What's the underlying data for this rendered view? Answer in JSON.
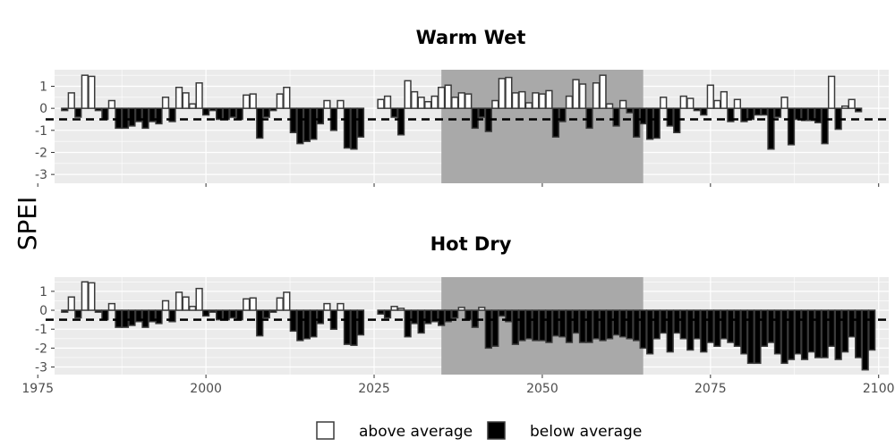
{
  "chart_data": {
    "type": "bar",
    "ylabel": "SPEI",
    "xlim": [
      1977.5,
      2101.5
    ],
    "ylim": [
      -3.4,
      1.75
    ],
    "x_ticks": [
      1975,
      2000,
      2025,
      2050,
      2075,
      2100
    ],
    "y_ticks": [
      1,
      0,
      -1,
      -2,
      -3
    ],
    "threshold": -0.5,
    "highlight_period": [
      2035,
      2065
    ],
    "colors": {
      "panel_bg": "#ebebeb",
      "grid": "#ffffff",
      "highlight": "#a9a9a9",
      "positive_fill": "#ffffff",
      "negative_fill": "#000000",
      "bar_outline": "#3a3a3a"
    },
    "legend": {
      "position": "bottom",
      "items": [
        {
          "label": "above average",
          "fill": "#ffffff"
        },
        {
          "label": "below average",
          "fill": "#000000"
        }
      ]
    },
    "panels": [
      {
        "title": "Warm Wet",
        "segments": [
          {
            "start": 1979,
            "values": [
              -0.1,
              0.7,
              -0.4,
              1.5,
              1.45,
              -0.1,
              -0.5,
              0.35,
              -0.9,
              -0.9,
              -0.8,
              -0.6,
              -0.9,
              -0.6,
              -0.7,
              0.5,
              -0.6,
              0.95,
              0.7,
              0.2,
              1.15,
              -0.3,
              -0.1,
              -0.5,
              -0.5,
              -0.4,
              -0.5,
              0.6,
              0.65,
              -1.35,
              -0.4,
              -0.1,
              0.65,
              0.95,
              -1.1,
              -1.6,
              -1.5,
              -1.4,
              -0.7,
              0.35,
              -1.0,
              0.35,
              -1.8,
              -1.85,
              -1.3
            ]
          },
          {
            "start": 2026,
            "values": [
              0.4,
              0.55,
              -0.4,
              -1.2,
              1.25,
              0.75,
              0.5,
              0.3,
              0.55,
              0.95,
              1.05,
              0.5,
              0.7,
              0.65,
              -0.9,
              -0.4,
              -1.05,
              0.35,
              1.35,
              1.4,
              0.7,
              0.75,
              0.25,
              0.7,
              0.65,
              0.8,
              -1.3,
              -0.6,
              0.55,
              1.3,
              1.1,
              -0.9,
              1.15,
              1.5,
              0.2,
              -0.8,
              0.35,
              -0.2,
              -1.3,
              -0.7,
              -1.4,
              -1.35,
              0.5,
              -0.8,
              -1.1,
              0.55,
              0.45,
              -0.1,
              -0.3,
              1.05,
              0.35,
              0.75,
              -0.6,
              0.4,
              -0.6,
              -0.5,
              -0.3,
              -0.3,
              -1.85,
              -0.4,
              0.5,
              -1.65,
              -0.5,
              -0.55,
              -0.55,
              -0.65,
              -1.6,
              1.45,
              -0.95,
              0.1,
              0.4,
              -0.15
            ]
          }
        ]
      },
      {
        "title": "Hot Dry",
        "segments": [
          {
            "start": 1979,
            "values": [
              -0.1,
              0.7,
              -0.4,
              1.5,
              1.45,
              -0.1,
              -0.5,
              0.35,
              -0.9,
              -0.9,
              -0.8,
              -0.6,
              -0.9,
              -0.6,
              -0.7,
              0.5,
              -0.6,
              0.95,
              0.7,
              0.2,
              1.15,
              -0.3,
              -0.1,
              -0.5,
              -0.5,
              -0.4,
              -0.5,
              0.6,
              0.65,
              -1.35,
              -0.4,
              -0.1,
              0.65,
              0.95,
              -1.1,
              -1.6,
              -1.5,
              -1.4,
              -0.7,
              0.35,
              -1.0,
              0.35,
              -1.8,
              -1.85,
              -1.3
            ]
          },
          {
            "start": 2026,
            "values": [
              -0.2,
              -0.4,
              0.2,
              0.1,
              -1.4,
              -0.7,
              -1.2,
              -0.7,
              -0.6,
              -0.8,
              -0.6,
              -0.4,
              0.15,
              -0.5,
              -0.9,
              0.15,
              -2.0,
              -1.9,
              -0.3,
              -0.6,
              -1.8,
              -1.6,
              -1.5,
              -1.6,
              -1.6,
              -1.7,
              -1.35,
              -1.4,
              -1.7,
              -1.2,
              -1.7,
              -1.7,
              -1.5,
              -1.6,
              -1.5,
              -1.3,
              -1.4,
              -1.5,
              -1.6,
              -2.0,
              -2.3,
              -1.5,
              -1.2,
              -2.2,
              -1.2,
              -1.5,
              -2.1,
              -1.5,
              -2.2,
              -1.7,
              -1.9,
              -1.5,
              -1.7,
              -1.9,
              -2.3,
              -2.8,
              -2.8,
              -1.9,
              -1.7,
              -2.3,
              -2.8,
              -2.6,
              -2.3,
              -2.6,
              -2.2,
              -2.5,
              -2.5,
              -1.9,
              -2.6,
              -2.2,
              -1.4,
              -2.5,
              -3.15,
              -2.1
            ]
          }
        ]
      }
    ]
  }
}
